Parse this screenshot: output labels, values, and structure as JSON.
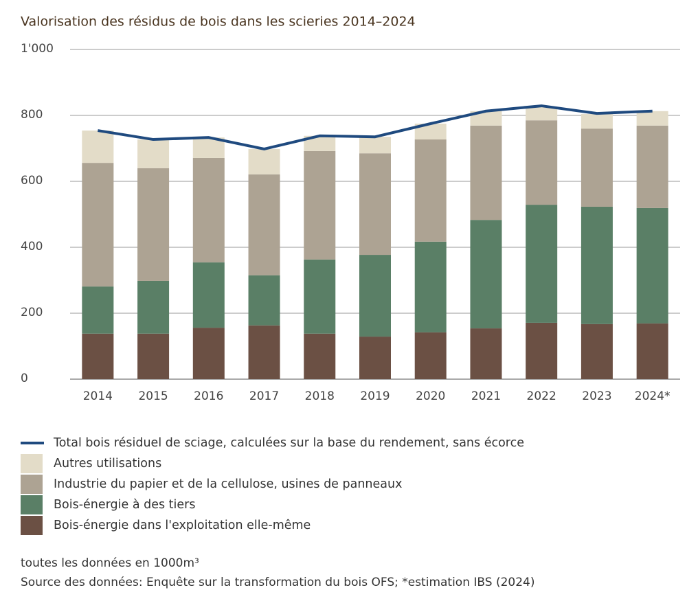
{
  "chart_data": {
    "type": "bar",
    "stacked": true,
    "title": "Valorisation des résidus de bois dans les scieries 2014–2024",
    "categories": [
      "2014",
      "2015",
      "2016",
      "2017",
      "2018",
      "2019",
      "2020",
      "2021",
      "2022",
      "2023",
      "2024*"
    ],
    "ylim": [
      0,
      1000
    ],
    "yticks": [
      0,
      200,
      400,
      600,
      800,
      {
        "value": 1000,
        "label": "1'000"
      }
    ],
    "grid": true,
    "series": [
      {
        "name": "Total bois résiduel de sciage, calculées sur la base du rendement, sans écorce",
        "type": "line",
        "color": "#1f4a7f",
        "values": [
          754,
          727,
          733,
          698,
          738,
          735,
          775,
          813,
          829,
          806,
          813
        ]
      },
      {
        "name": "Autres utilisations",
        "color": "#e3dcc8",
        "values": [
          98,
          87,
          62,
          77,
          46,
          50,
          48,
          44,
          42,
          44,
          44
        ]
      },
      {
        "name": "Industrie du papier et de la cellulose, usines de panneaux",
        "color": "#ada393",
        "values": [
          375,
          342,
          317,
          306,
          329,
          308,
          310,
          286,
          256,
          237,
          250
        ]
      },
      {
        "name": "Bois-énergie à des tiers",
        "color": "#5a7f66",
        "values": [
          143,
          160,
          198,
          152,
          225,
          248,
          275,
          329,
          358,
          356,
          350
        ]
      },
      {
        "name": "Bois-énergie dans l'exploitation elle-même",
        "color": "#6b5044",
        "values": [
          138,
          138,
          156,
          163,
          138,
          129,
          142,
          154,
          171,
          167,
          169
        ]
      }
    ],
    "notes": [
      "toutes les données en 1000m³",
      "Source des données: Enquête sur la transformation du bois OFS;  *estimation IBS (2024)"
    ]
  }
}
